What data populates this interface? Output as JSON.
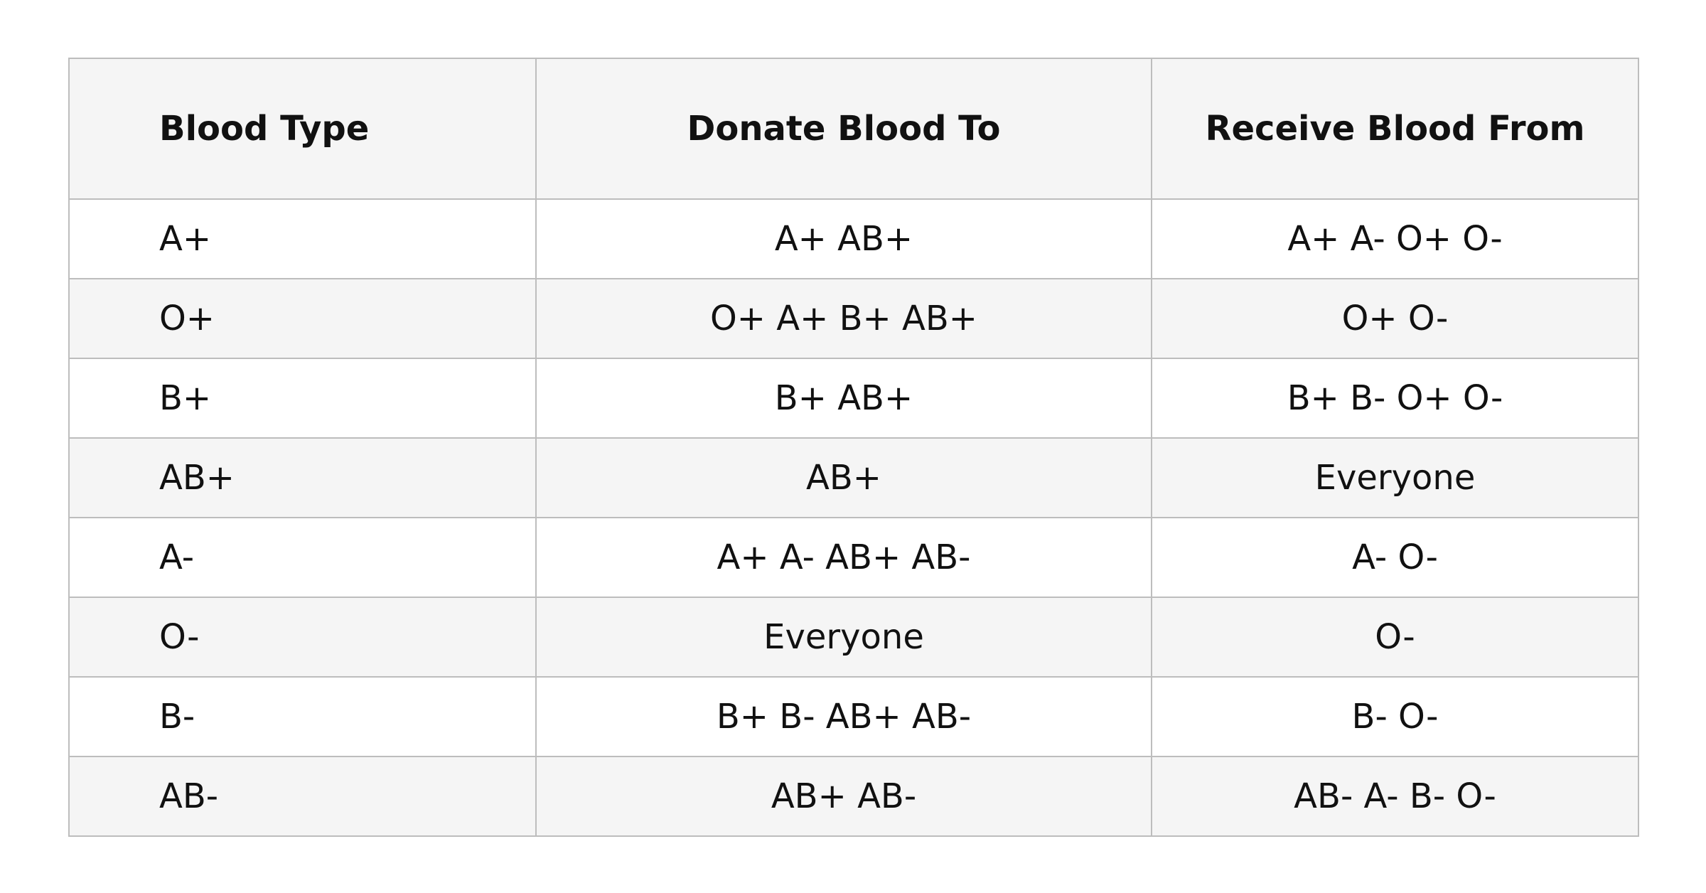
{
  "table": {
    "header": [
      "Blood Type",
      "Donate Blood To",
      "Receive Blood From"
    ],
    "rows": [
      [
        "A+",
        "A+ AB+",
        "A+ A- O+ O-"
      ],
      [
        "O+",
        "O+ A+ B+ AB+",
        "O+ O-"
      ],
      [
        "B+",
        "B+ AB+",
        "B+ B- O+ O-"
      ],
      [
        "AB+",
        "AB+",
        "Everyone"
      ],
      [
        "A-",
        "A+ A- AB+ AB-",
        "A- O-"
      ],
      [
        "O-",
        "Everyone",
        "O-"
      ],
      [
        "B-",
        "B+ B- AB+ AB-",
        "B- O-"
      ],
      [
        "AB-",
        "AB+ AB-",
        "AB- A- B- O-"
      ]
    ]
  }
}
